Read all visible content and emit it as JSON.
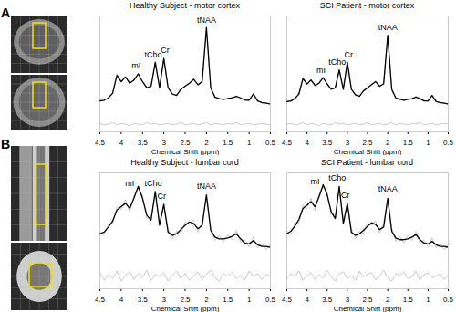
{
  "panel_labels": [
    "A",
    "B"
  ],
  "chart_data": [
    {
      "type": "line",
      "title": "Healthy Subject - motor cortex",
      "x_label": "Chemical Shift (ppm)",
      "xlim": [
        4.5,
        0.5
      ],
      "xticks": [
        4.5,
        4,
        3.5,
        3,
        2.5,
        2,
        1.5,
        1,
        0.5
      ],
      "ylim": [
        -35,
        115
      ],
      "tick_labels": "x",
      "grid": false,
      "x": [
        4.5,
        4.4,
        4.3,
        4.2,
        4.1,
        4.0,
        3.9,
        3.8,
        3.7,
        3.6,
        3.5,
        3.4,
        3.3,
        3.2,
        3.1,
        3.0,
        2.9,
        2.8,
        2.7,
        2.6,
        2.5,
        2.4,
        2.3,
        2.2,
        2.1,
        2.0,
        1.9,
        1.8,
        1.7,
        1.6,
        1.5,
        1.4,
        1.3,
        1.2,
        1.1,
        1.0,
        0.9,
        0.8,
        0.7,
        0.6,
        0.5
      ],
      "series": [
        {
          "color": "#b4b4b4",
          "values": [
            6,
            5,
            10,
            14,
            40,
            29,
            37,
            27,
            33,
            41,
            29,
            23,
            23,
            56,
            21,
            61,
            23,
            13,
            13,
            19,
            25,
            27,
            34,
            25,
            31,
            99,
            23,
            9,
            9,
            6,
            9,
            8,
            12,
            8,
            7,
            5,
            15,
            6,
            2,
            3,
            0
          ]
        },
        {
          "color": "#000000",
          "values": [
            5,
            6,
            9,
            15,
            38,
            30,
            36,
            28,
            32,
            40,
            30,
            22,
            24,
            55,
            22,
            60,
            22,
            14,
            12,
            20,
            24,
            28,
            33,
            26,
            30,
            100,
            22,
            10,
            8,
            7,
            8,
            9,
            11,
            9,
            6,
            6,
            14,
            5,
            3,
            2,
            1
          ]
        },
        {
          "color": "#b4b4b4",
          "values": [
            -24,
            -26,
            -25,
            -23,
            -26,
            -24,
            -25,
            -27,
            -24,
            -25,
            -26,
            -23,
            -25,
            -24,
            -26,
            -25,
            -24,
            -26,
            -25,
            -23,
            -26,
            -25,
            -24,
            -26,
            -25,
            -23,
            -26,
            -24,
            -25,
            -26,
            -24,
            -25,
            -23,
            -26,
            -25,
            -24,
            -26,
            -25,
            -24,
            -25,
            -26
          ]
        }
      ],
      "annotations": [
        {
          "text": "mI",
          "x": 3.65,
          "y": 50
        },
        {
          "text": "tCho",
          "x": 3.25,
          "y": 65
        },
        {
          "text": "Cr",
          "x": 2.97,
          "y": 70
        },
        {
          "text": "tNAA",
          "x": 2.0,
          "y": 110
        }
      ]
    },
    {
      "type": "line",
      "title": "SCI Patient - motor cortex",
      "x_label": "Chemical Shift (ppm)",
      "xlim": [
        4.5,
        0.5
      ],
      "xticks": [
        4.5,
        4,
        3.5,
        3,
        2.5,
        2,
        1.5,
        1,
        0.5
      ],
      "ylim": [
        -35,
        115
      ],
      "tick_labels": "x",
      "grid": false,
      "x": [
        4.5,
        4.4,
        4.3,
        4.2,
        4.1,
        4.0,
        3.9,
        3.8,
        3.7,
        3.6,
        3.5,
        3.4,
        3.3,
        3.2,
        3.1,
        3.0,
        2.9,
        2.8,
        2.7,
        2.6,
        2.5,
        2.4,
        2.3,
        2.2,
        2.1,
        2.0,
        1.9,
        1.8,
        1.7,
        1.6,
        1.5,
        1.4,
        1.3,
        1.2,
        1.1,
        1.0,
        0.9,
        0.8,
        0.7,
        0.6,
        0.5
      ],
      "series": [
        {
          "color": "#b4b4b4",
          "values": [
            5,
            4,
            9,
            13,
            36,
            26,
            33,
            24,
            29,
            36,
            26,
            21,
            21,
            46,
            19,
            56,
            21,
            12,
            12,
            17,
            23,
            25,
            31,
            23,
            28,
            89,
            21,
            8,
            8,
            5,
            8,
            7,
            11,
            7,
            6,
            4,
            13,
            5,
            2,
            3,
            0
          ]
        },
        {
          "color": "#000000",
          "values": [
            4,
            5,
            8,
            14,
            34,
            27,
            32,
            25,
            28,
            35,
            27,
            20,
            22,
            45,
            20,
            55,
            20,
            13,
            11,
            18,
            22,
            26,
            30,
            24,
            27,
            90,
            20,
            9,
            7,
            6,
            7,
            8,
            10,
            8,
            5,
            5,
            12,
            4,
            3,
            2,
            1
          ]
        },
        {
          "color": "#b4b4b4",
          "values": [
            -25,
            -24,
            -26,
            -25,
            -23,
            -26,
            -24,
            -25,
            -27,
            -24,
            -25,
            -26,
            -23,
            -25,
            -24,
            -26,
            -25,
            -24,
            -26,
            -25,
            -23,
            -26,
            -25,
            -24,
            -26,
            -25,
            -23,
            -26,
            -24,
            -25,
            -26,
            -24,
            -25,
            -23,
            -26,
            -25,
            -24,
            -26,
            -25,
            -24,
            -25
          ]
        }
      ],
      "annotations": [
        {
          "text": "mI",
          "x": 3.65,
          "y": 45
        },
        {
          "text": "tCho",
          "x": 3.25,
          "y": 55
        },
        {
          "text": "Cr",
          "x": 2.97,
          "y": 65
        },
        {
          "text": "tNAA",
          "x": 2.0,
          "y": 100
        }
      ]
    },
    {
      "type": "line",
      "title": "Healthy Subject - lumbar cord",
      "x_label": "Chemical Shift (ppm)",
      "xlim": [
        4.5,
        0.5
      ],
      "xticks": [
        4.5,
        4,
        3.5,
        3,
        2.5,
        2,
        1.5,
        1,
        0.5
      ],
      "ylim": [
        -45,
        92
      ],
      "tick_labels": "x",
      "grid": false,
      "x": [
        4.5,
        4.4,
        4.3,
        4.2,
        4.1,
        4.0,
        3.9,
        3.8,
        3.7,
        3.6,
        3.5,
        3.4,
        3.3,
        3.2,
        3.1,
        3.0,
        2.9,
        2.8,
        2.7,
        2.6,
        2.5,
        2.4,
        2.3,
        2.2,
        2.1,
        2.0,
        1.9,
        1.8,
        1.7,
        1.6,
        1.5,
        1.4,
        1.3,
        1.2,
        1.1,
        1.0,
        0.9,
        0.8,
        0.7,
        0.6,
        0.5
      ],
      "series": [
        {
          "color": "#b4b4b4",
          "values": [
            24,
            18,
            31,
            32,
            52,
            49,
            60,
            46,
            65,
            73,
            66,
            38,
            40,
            67,
            34,
            52,
            26,
            14,
            23,
            21,
            34,
            31,
            36,
            22,
            34,
            63,
            28,
            12,
            18,
            10,
            19,
            13,
            24,
            10,
            13,
            4,
            16,
            3,
            9,
            1,
            8
          ]
        },
        {
          "color": "#000000",
          "values": [
            20,
            22,
            28,
            35,
            48,
            52,
            56,
            50,
            62,
            76,
            62,
            42,
            36,
            70,
            30,
            55,
            22,
            18,
            20,
            25,
            30,
            34,
            32,
            26,
            30,
            66,
            24,
            16,
            14,
            14,
            15,
            17,
            20,
            14,
            9,
            8,
            12,
            7,
            5,
            5,
            4
          ]
        },
        {
          "color": "#b4b4b4",
          "values": [
            -26,
            -35,
            -28,
            -33,
            -24,
            -36,
            -29,
            -25,
            -34,
            -27,
            -32,
            -23,
            -35,
            -28,
            -31,
            -26,
            -36,
            -29,
            -24,
            -33,
            -27,
            -35,
            -30,
            -25,
            -34,
            -28,
            -23,
            -32,
            -36,
            -27,
            -30,
            -25,
            -33,
            -29,
            -35,
            -24,
            -31,
            -27,
            -34,
            -28,
            -30
          ]
        }
      ],
      "annotations": [
        {
          "text": "mI",
          "x": 3.8,
          "y": 80
        },
        {
          "text": "tCho",
          "x": 3.25,
          "y": 80
        },
        {
          "text": "Cr",
          "x": 3.05,
          "y": 64
        },
        {
          "text": "tNAA",
          "x": 2.0,
          "y": 76
        }
      ]
    },
    {
      "type": "line",
      "title": "SCI Patient - lumbar cord",
      "x_label": "Chemical Shift (ppm)",
      "xlim": [
        4.5,
        0.5
      ],
      "xticks": [
        4.5,
        4,
        3.5,
        3,
        2.5,
        2,
        1.5,
        1,
        0.5
      ],
      "ylim": [
        -45,
        92
      ],
      "tick_labels": "x",
      "grid": false,
      "x": [
        4.5,
        4.4,
        4.3,
        4.2,
        4.1,
        4.0,
        3.9,
        3.8,
        3.7,
        3.6,
        3.5,
        3.4,
        3.3,
        3.2,
        3.1,
        3.0,
        2.9,
        2.8,
        2.7,
        2.6,
        2.5,
        2.4,
        2.3,
        2.2,
        2.1,
        2.0,
        1.9,
        1.8,
        1.7,
        1.6,
        1.5,
        1.4,
        1.3,
        1.2,
        1.1,
        1.0,
        0.9,
        0.8,
        0.7,
        0.6,
        0.5
      ],
      "series": [
        {
          "color": "#b4b4b4",
          "values": [
            23,
            19,
            33,
            33,
            54,
            50,
            62,
            48,
            67,
            75,
            70,
            42,
            42,
            73,
            36,
            53,
            26,
            14,
            23,
            20,
            33,
            30,
            35,
            21,
            32,
            59,
            27,
            11,
            17,
            9,
            18,
            12,
            23,
            9,
            13,
            4,
            15,
            3,
            9,
            1,
            8
          ]
        },
        {
          "color": "#000000",
          "values": [
            20,
            23,
            29,
            37,
            50,
            54,
            58,
            52,
            64,
            78,
            66,
            46,
            38,
            76,
            32,
            56,
            22,
            18,
            20,
            24,
            29,
            33,
            31,
            25,
            28,
            62,
            23,
            15,
            13,
            13,
            14,
            16,
            19,
            13,
            9,
            8,
            11,
            7,
            5,
            5,
            4
          ]
        },
        {
          "color": "#b4b4b4",
          "values": [
            -33,
            -27,
            -31,
            -24,
            -35,
            -29,
            -26,
            -34,
            -28,
            -32,
            -23,
            -30,
            -36,
            -27,
            -25,
            -33,
            -29,
            -35,
            -24,
            -31,
            -28,
            -26,
            -34,
            -30,
            -23,
            -32,
            -36,
            -27,
            -29,
            -25,
            -33,
            -31,
            -24,
            -35,
            -28,
            -26,
            -32,
            -30,
            -27,
            -34,
            -29
          ]
        }
      ],
      "annotations": [
        {
          "text": "mI",
          "x": 3.8,
          "y": 82
        },
        {
          "text": "tCho",
          "x": 3.25,
          "y": 86
        },
        {
          "text": "Cr",
          "x": 3.05,
          "y": 65
        },
        {
          "text": "tNAA",
          "x": 2.0,
          "y": 73
        }
      ]
    }
  ]
}
